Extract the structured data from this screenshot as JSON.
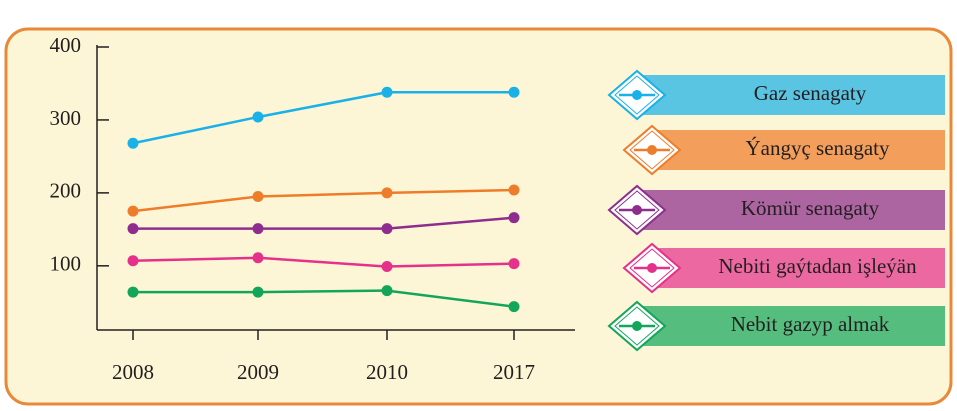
{
  "chart_data": {
    "type": "line",
    "categories": [
      "2008",
      "2009",
      "2010",
      "2017"
    ],
    "series": [
      {
        "name": "Gaz senagaty",
        "color": "#1ab0e8",
        "values": [
          268,
          304,
          338,
          338
        ]
      },
      {
        "name": "Ýangyç senagaty",
        "color": "#ee7d2b",
        "values": [
          175,
          195,
          200,
          204
        ]
      },
      {
        "name": "Kömür senagaty",
        "color": "#8e2d8e",
        "values": [
          151,
          151,
          151,
          166
        ]
      },
      {
        "name": "Nebiti gaýtadan işleýän",
        "color": "#e5318a",
        "values": [
          107,
          111,
          99,
          103
        ]
      },
      {
        "name": "Nebit gazyp almak",
        "color": "#13a65a",
        "values": [
          64,
          64,
          66,
          44
        ]
      }
    ],
    "ylim": [
      12,
      400
    ],
    "yticks": [
      100,
      200,
      300,
      400
    ]
  }
}
